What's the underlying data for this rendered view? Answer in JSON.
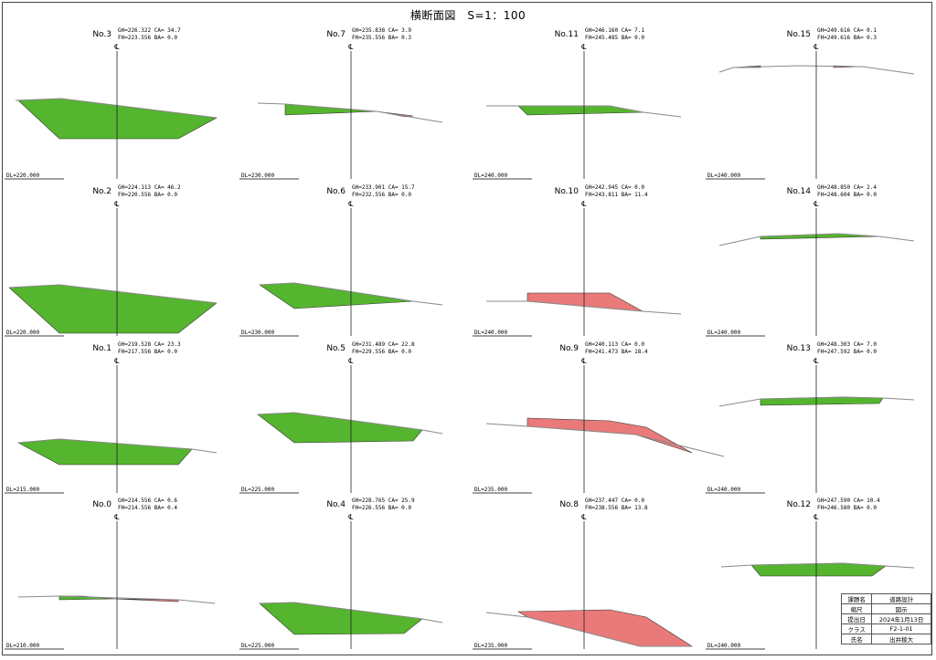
{
  "title": "横断面図　S=1：100",
  "colors": {
    "fill": "#55b52e",
    "cut": "#e97a79",
    "ground": "#8a8a8a",
    "axis": "#222222"
  },
  "cl_mark": "℄",
  "sections": [
    {
      "no": "No.3",
      "gh": "GH=226.322 CA=  34.7",
      "fh": "FH=223.556 BA=   0.0",
      "dl": "DL=220.000"
    },
    {
      "no": "No.7",
      "gh": "GH=235.838 CA=   3.9",
      "fh": "FH=235.556 BA=   0.3",
      "dl": "DL=230.000"
    },
    {
      "no": "No.11",
      "gh": "GH=246.160 CA=   7.1",
      "fh": "FH=245.485 BA=   0.0",
      "dl": "DL=240.000"
    },
    {
      "no": "No.15",
      "gh": "GH=249.616 CA=   0.1",
      "fh": "FH=249.616 BA=   0.3",
      "dl": "DL=240.000"
    },
    {
      "no": "No.2",
      "gh": "GH=224.113 CA=  46.2",
      "fh": "FH=220.556 BA=   0.0",
      "dl": "DL=220.000"
    },
    {
      "no": "No.6",
      "gh": "GH=233.901 CA=  15.7",
      "fh": "FH=232.556 BA=   0.0",
      "dl": "DL=230.000"
    },
    {
      "no": "No.10",
      "gh": "GH=242.945 CA=   0.0",
      "fh": "FH=243.811 BA=  11.4",
      "dl": "DL=240.000"
    },
    {
      "no": "No.14",
      "gh": "GH=248.850 CA=   2.4",
      "fh": "FH=248.604 BA=   0.0",
      "dl": "DL=240.000"
    },
    {
      "no": "No.1",
      "gh": "GH=219.528 CA=  23.3",
      "fh": "FH=217.556 BA=   0.0",
      "dl": "DL=215.000"
    },
    {
      "no": "No.5",
      "gh": "GH=231.489 CA=  22.8",
      "fh": "FH=229.556 BA=   0.0",
      "dl": "DL=225.000"
    },
    {
      "no": "No.9",
      "gh": "GH=240.113 CA=   0.0",
      "fh": "FH=241.473 BA=  18.4",
      "dl": "DL=235.000"
    },
    {
      "no": "No.13",
      "gh": "GH=248.303 CA=   7.0",
      "fh": "FH=247.592 BA=   0.0",
      "dl": "DL=240.000"
    },
    {
      "no": "No.0",
      "gh": "GH=214.556 CA=   0.6",
      "fh": "FH=214.556 BA=   0.4",
      "dl": "DL=210.000"
    },
    {
      "no": "No.4",
      "gh": "GH=228.765 CA=  25.9",
      "fh": "FH=226.556 BA=   0.0",
      "dl": "DL=225.000"
    },
    {
      "no": "No.8",
      "gh": "GH=237.447 CA=   0.0",
      "fh": "FH=238.556 BA=  13.8",
      "dl": "DL=235.000"
    },
    {
      "no": "No.12",
      "gh": "GH=247.590 CA=  10.4",
      "fh": "FH=246.580 BA=   0.0",
      "dl": "DL=240.000"
    }
  ],
  "title_block": {
    "rows": [
      {
        "key": "課題名",
        "value": "道路設計"
      },
      {
        "key": "縮尺",
        "value": "図示"
      },
      {
        "key": "提出日",
        "value": "2024年1月13日"
      },
      {
        "key": "クラス",
        "value": "F2-1-01"
      },
      {
        "key": "氏名",
        "value": "出井稜大"
      }
    ]
  }
}
